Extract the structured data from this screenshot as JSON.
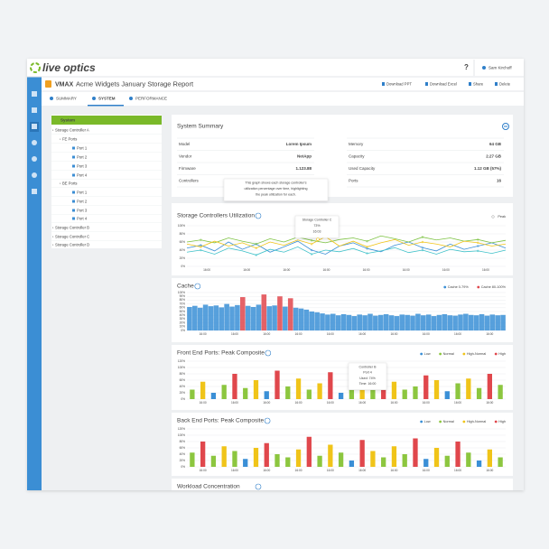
{
  "app": {
    "logo": "live optics",
    "help": "?",
    "user": "Sam Kirchoff"
  },
  "report": {
    "brand": "VMAX",
    "title": "Acme Widgets January Storage Report",
    "actions": [
      "Download PPT",
      "Download Excel",
      "Share",
      "Delete"
    ]
  },
  "tabs": [
    "SUMMARY",
    "SYSTEM",
    "PERFORMANCE"
  ],
  "tree": {
    "root": "System",
    "items": [
      {
        "label": "Storage Controller A",
        "level": 1
      },
      {
        "label": "FE Ports",
        "level": 2
      },
      {
        "label": "Port 1",
        "level": 3
      },
      {
        "label": "Port 2",
        "level": 3
      },
      {
        "label": "Port 3",
        "level": 3
      },
      {
        "label": "Port 4",
        "level": 3
      },
      {
        "label": "BE Ports",
        "level": 2
      },
      {
        "label": "Port 1",
        "level": 3
      },
      {
        "label": "Port 2",
        "level": 3
      },
      {
        "label": "Port 3",
        "level": 3
      },
      {
        "label": "Port 4",
        "level": 3
      },
      {
        "label": "Storage Controller B",
        "level": 1
      },
      {
        "label": "Storage Controller C",
        "level": 1
      },
      {
        "label": "Storage Controller D",
        "level": 1
      }
    ]
  },
  "summary": {
    "title": "System Summary",
    "left": [
      [
        "Model",
        "Lorem Ipsum"
      ],
      [
        "Vendor",
        "NetApp"
      ],
      [
        "Firmware",
        "1.123.88"
      ],
      [
        "Controllers",
        ""
      ]
    ],
    "right": [
      [
        "Memory",
        "64 GB"
      ],
      [
        "Capacity",
        "2.27 GB"
      ],
      [
        "Used Capacity",
        "1.12 GB (57%)"
      ],
      [
        "Ports",
        "16"
      ]
    ],
    "tooltip": [
      "This graph shows each storage controller's",
      "utilization percentage over time, highlighting",
      "the peak utilization for each."
    ]
  },
  "workload": {
    "title": "Workload Concentration"
  },
  "chart_data": [
    {
      "type": "line",
      "title": "Storage Controllers Utilization",
      "legend": "Peak",
      "ylim": [
        0,
        100
      ],
      "yticks": [
        {
          "value": 0,
          "label": "0%"
        },
        {
          "value": 20,
          "label": "20%"
        },
        {
          "value": 40,
          "label": "40%"
        },
        {
          "value": 60,
          "label": "60%"
        },
        {
          "value": 80,
          "label": "80%"
        },
        {
          "value": 100,
          "label": "100%"
        }
      ],
      "grid": true,
      "xtick_labels": [
        "16:00",
        "16:00",
        "16:00",
        "16:00",
        "16:00",
        "16:00",
        "16:00",
        "16:00"
      ],
      "series": [
        {
          "color": "#3a8fd6",
          "values": [
            45,
            52,
            38,
            60,
            42,
            55,
            35,
            48,
            62,
            40,
            30,
            50,
            58,
            44,
            36,
            52,
            60,
            46,
            38,
            55,
            42,
            50,
            58,
            45
          ]
        },
        {
          "color": "#7cc242",
          "values": [
            60,
            65,
            58,
            70,
            62,
            55,
            68,
            60,
            72,
            64,
            58,
            66,
            70,
            62,
            75,
            68,
            60,
            72,
            65,
            70,
            62,
            66,
            58,
            64
          ]
        },
        {
          "name": "Storage Controller C",
          "color": "#f0c419",
          "values": [
            55,
            48,
            62,
            50,
            58,
            45,
            60,
            52,
            65,
            55,
            73,
            50,
            62,
            48,
            58,
            66,
            52,
            60,
            55,
            48,
            62,
            58,
            50,
            55
          ]
        },
        {
          "color": "#3fc1c9",
          "values": [
            35,
            40,
            30,
            45,
            38,
            28,
            42,
            35,
            48,
            30,
            40,
            36,
            44,
            32,
            38,
            46,
            34,
            40,
            30,
            42,
            36,
            38,
            32,
            40
          ]
        }
      ],
      "tooltip": [
        "Storage Controller C",
        "73%",
        "16:03"
      ]
    },
    {
      "type": "area",
      "title": "Cache",
      "ylim": [
        0,
        100
      ],
      "yticks": [
        {
          "value": 0,
          "label": "0%"
        },
        {
          "value": 10,
          "label": "10%"
        },
        {
          "value": 20,
          "label": "20%"
        },
        {
          "value": 30,
          "label": "30%"
        },
        {
          "value": 40,
          "label": "40%"
        },
        {
          "value": 50,
          "label": "50%"
        },
        {
          "value": 60,
          "label": "60%"
        },
        {
          "value": 70,
          "label": "70%"
        },
        {
          "value": 80,
          "label": "80%"
        },
        {
          "value": 90,
          "label": "90%"
        },
        {
          "value": 100,
          "label": "100%"
        }
      ],
      "grid": true,
      "xtick_labels": [
        "16:00",
        "16:00",
        "16:00",
        "16:00",
        "16:00",
        "16:00",
        "16:00",
        "16:00",
        "16:00",
        "16:00"
      ],
      "series": [
        {
          "name": "Cache 0-79%",
          "color": "#3a8fd6",
          "values": [
            62,
            65,
            60,
            68,
            64,
            66,
            61,
            70,
            63,
            67,
            null,
            65,
            62,
            68,
            null,
            64,
            66,
            null,
            63,
            null,
            60,
            58,
            55,
            50,
            48,
            45,
            42,
            44,
            40,
            43,
            41,
            38,
            42,
            40,
            44,
            39,
            41,
            43,
            40,
            38,
            42,
            41,
            39,
            44,
            40,
            42,
            38,
            41,
            43,
            40,
            39,
            42,
            44,
            41,
            40,
            43,
            39,
            42,
            40,
            41
          ]
        },
        {
          "name": "Cache 80-100%",
          "color": "#e0474c",
          "values": [
            null,
            null,
            null,
            null,
            null,
            null,
            null,
            null,
            null,
            null,
            88,
            null,
            null,
            null,
            95,
            null,
            null,
            90,
            null,
            85,
            null,
            null,
            null,
            null,
            null,
            null,
            null,
            null,
            null,
            null,
            null,
            null,
            null,
            null,
            null,
            null,
            null,
            null,
            null,
            null,
            null,
            null,
            null,
            null,
            null,
            null,
            null,
            null,
            null,
            null,
            null,
            null,
            null,
            null,
            null,
            null,
            null,
            null,
            null,
            null
          ]
        }
      ]
    },
    {
      "type": "bar",
      "title": "Front End Ports: Peak Composite",
      "ylim": [
        0,
        120
      ],
      "yticks": [
        {
          "value": 0,
          "label": "0%"
        },
        {
          "value": 20,
          "label": "20%"
        },
        {
          "value": 40,
          "label": "40%"
        },
        {
          "value": 60,
          "label": "60%"
        },
        {
          "value": 80,
          "label": "80%"
        },
        {
          "value": 100,
          "label": "100%"
        },
        {
          "value": 120,
          "label": "120%"
        }
      ],
      "grid": true,
      "xtick_labels": [
        "16:00",
        "16:00",
        "16:00",
        "16:00",
        "16:00",
        "16:00",
        "16:00",
        "16:00",
        "16:00",
        "16:00"
      ],
      "series": [
        {
          "name": "Low",
          "color": "#3a8fd6",
          "values": [
            null,
            null,
            20,
            null,
            null,
            null,
            null,
            25,
            null,
            null,
            null,
            null,
            null,
            null,
            20,
            null,
            null,
            null,
            null,
            null,
            null,
            null,
            null,
            null,
            25,
            null,
            null,
            null,
            null,
            null
          ]
        },
        {
          "name": "Normal",
          "color": "#8cc63f",
          "values": [
            30,
            null,
            null,
            45,
            null,
            35,
            null,
            null,
            null,
            40,
            null,
            30,
            null,
            null,
            null,
            45,
            null,
            35,
            null,
            null,
            30,
            40,
            null,
            null,
            null,
            50,
            null,
            35,
            null,
            45
          ]
        },
        {
          "name": "High-Normal",
          "color": "#f0c419",
          "values": [
            null,
            55,
            null,
            null,
            null,
            null,
            60,
            null,
            null,
            null,
            65,
            null,
            50,
            null,
            null,
            null,
            70,
            null,
            null,
            55,
            null,
            null,
            null,
            60,
            null,
            null,
            65,
            null,
            null,
            null
          ]
        },
        {
          "name": "High",
          "color": "#e0474c",
          "values": [
            null,
            null,
            null,
            null,
            80,
            null,
            null,
            null,
            90,
            null,
            null,
            null,
            null,
            85,
            null,
            null,
            null,
            null,
            95,
            null,
            null,
            null,
            75,
            null,
            null,
            null,
            null,
            null,
            80,
            null
          ]
        }
      ],
      "tooltip": [
        "Controller B",
        "Port 4",
        "Used: 74%",
        "Time: 16:00"
      ]
    },
    {
      "type": "bar",
      "title": "Back End Ports: Peak Composite",
      "ylim": [
        0,
        120
      ],
      "yticks": [
        {
          "value": 0,
          "label": "0%"
        },
        {
          "value": 20,
          "label": "20%"
        },
        {
          "value": 40,
          "label": "40%"
        },
        {
          "value": 60,
          "label": "60%"
        },
        {
          "value": 80,
          "label": "80%"
        },
        {
          "value": 100,
          "label": "100%"
        },
        {
          "value": 120,
          "label": "120%"
        }
      ],
      "grid": true,
      "xtick_labels": [
        "16:00",
        "16:00",
        "16:00",
        "16:00",
        "16:00",
        "16:00",
        "16:00",
        "16:00",
        "16:00",
        "16:00"
      ],
      "series": [
        {
          "name": "Low",
          "color": "#3a8fd6",
          "values": [
            null,
            null,
            null,
            null,
            null,
            25,
            null,
            null,
            null,
            null,
            null,
            null,
            null,
            null,
            null,
            20,
            null,
            null,
            null,
            null,
            null,
            null,
            25,
            null,
            null,
            null,
            null,
            20,
            null,
            null
          ]
        },
        {
          "name": "Normal",
          "color": "#8cc63f",
          "values": [
            45,
            null,
            35,
            null,
            50,
            null,
            null,
            null,
            40,
            30,
            null,
            null,
            35,
            null,
            45,
            null,
            null,
            null,
            30,
            null,
            40,
            null,
            null,
            null,
            35,
            null,
            45,
            null,
            null,
            30
          ]
        },
        {
          "name": "High-Normal",
          "color": "#f0c419",
          "values": [
            null,
            null,
            null,
            65,
            null,
            null,
            60,
            null,
            null,
            null,
            55,
            null,
            null,
            70,
            null,
            null,
            null,
            50,
            null,
            65,
            null,
            null,
            null,
            60,
            null,
            null,
            null,
            null,
            55,
            null
          ]
        },
        {
          "name": "High",
          "color": "#e0474c",
          "values": [
            null,
            80,
            null,
            null,
            null,
            null,
            null,
            75,
            null,
            null,
            null,
            95,
            null,
            null,
            null,
            null,
            85,
            null,
            null,
            null,
            null,
            90,
            null,
            null,
            null,
            80,
            null,
            null,
            null,
            null
          ]
        }
      ]
    }
  ]
}
